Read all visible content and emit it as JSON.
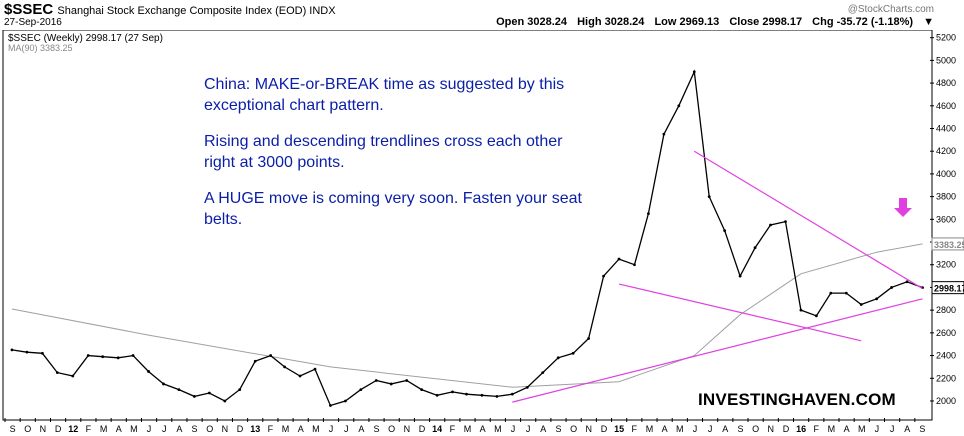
{
  "header": {
    "symbol": "$SSEC",
    "description": "Shanghai Stock Exchange Composite Index (EOD)  INDX",
    "date": "27-Sep-2016",
    "brand": "@StockCharts.com",
    "open": "Open 3028.24",
    "high": "High 3028.24",
    "low": "Low 2969.13",
    "close": "Close 2998.17",
    "chg": "Chg -35.72 (-1.18%)",
    "chg_arrow": "▼"
  },
  "legend": {
    "price": "$SSEC (Weekly) 2998.17 (27 Sep)",
    "ma": "MA(90) 3383.25"
  },
  "annotation": {
    "line1": "China: MAKE-or-BREAK time as suggested by this exceptional chart pattern.",
    "line2": "Rising and descending trendlines cross each other right at 3000 points.",
    "line3": "A HUGE move is coming very soon. Fasten your seat belts."
  },
  "watermark": "INVESTINGHAVEN.COM",
  "colors": {
    "price": "#000000",
    "ma": "#a0a0a0",
    "trendline": "#e040e0",
    "text": "#0a1ea8",
    "arrow": "#e040e0"
  },
  "chart_data": {
    "type": "line",
    "title": "$SSEC (Weekly)",
    "ylim": [
      1850,
      5250
    ],
    "y_ticks": [
      2000,
      2200,
      2400,
      2600,
      2800,
      3000,
      3200,
      3400,
      3600,
      3800,
      4000,
      4200,
      4400,
      4600,
      4800,
      5000,
      5200
    ],
    "x_labels": [
      "S",
      "O",
      "N",
      "D",
      "12",
      "F",
      "M",
      "A",
      "M",
      "J",
      "J",
      "A",
      "S",
      "O",
      "N",
      "D",
      "13",
      "F",
      "M",
      "A",
      "M",
      "J",
      "J",
      "A",
      "S",
      "O",
      "N",
      "D",
      "14",
      "F",
      "M",
      "A",
      "M",
      "J",
      "J",
      "A",
      "S",
      "O",
      "N",
      "D",
      "15",
      "F",
      "M",
      "A",
      "M",
      "J",
      "J",
      "A",
      "S",
      "O",
      "N",
      "D",
      "16",
      "F",
      "M",
      "A",
      "M",
      "J",
      "J",
      "A",
      "S"
    ],
    "last_labels": [
      "3383.25",
      "2998.17"
    ],
    "series": [
      {
        "name": "$SSEC (Weekly)",
        "dates": [
          "2011-09",
          "2011-10",
          "2011-11",
          "2011-12",
          "2012-01",
          "2012-02",
          "2012-03",
          "2012-04",
          "2012-05",
          "2012-06",
          "2012-07",
          "2012-08",
          "2012-09",
          "2012-10",
          "2012-11",
          "2012-12",
          "2013-01",
          "2013-02",
          "2013-03",
          "2013-04",
          "2013-05",
          "2013-06",
          "2013-07",
          "2013-08",
          "2013-09",
          "2013-10",
          "2013-11",
          "2013-12",
          "2014-01",
          "2014-02",
          "2014-03",
          "2014-04",
          "2014-05",
          "2014-06",
          "2014-07",
          "2014-08",
          "2014-09",
          "2014-10",
          "2014-11",
          "2014-12",
          "2015-01",
          "2015-02",
          "2015-03",
          "2015-04",
          "2015-05",
          "2015-06",
          "2015-07",
          "2015-08",
          "2015-09",
          "2015-10",
          "2015-11",
          "2015-12",
          "2016-01",
          "2016-02",
          "2016-03",
          "2016-04",
          "2016-05",
          "2016-06",
          "2016-07",
          "2016-08",
          "2016-09"
        ],
        "values": [
          2450,
          2430,
          2420,
          2250,
          2220,
          2400,
          2390,
          2380,
          2400,
          2260,
          2150,
          2100,
          2040,
          2070,
          2000,
          2100,
          2350,
          2400,
          2300,
          2220,
          2280,
          1960,
          2000,
          2100,
          2180,
          2150,
          2180,
          2100,
          2050,
          2080,
          2060,
          2050,
          2040,
          2060,
          2120,
          2250,
          2380,
          2420,
          2550,
          3100,
          3250,
          3200,
          3650,
          4350,
          4600,
          4900,
          3800,
          3500,
          3100,
          3350,
          3550,
          3580,
          2800,
          2750,
          2950,
          2950,
          2850,
          2900,
          3000,
          3050,
          2998.17
        ]
      },
      {
        "name": "MA(90)",
        "dates": [
          "2011-09",
          "2012-06",
          "2013-06",
          "2014-06",
          "2015-01",
          "2015-06",
          "2015-09",
          "2016-01",
          "2016-06",
          "2016-09"
        ],
        "values": [
          2810,
          2580,
          2300,
          2120,
          2170,
          2400,
          2760,
          3120,
          3310,
          3383.25
        ]
      }
    ],
    "trendlines": [
      {
        "name": "rising",
        "points": [
          [
            "2014-06",
            1990
          ],
          [
            "2016-09",
            2900
          ]
        ]
      },
      {
        "name": "descending-upper",
        "points": [
          [
            "2015-06",
            4200
          ],
          [
            "2016-09",
            2990
          ]
        ]
      },
      {
        "name": "descending-lower",
        "points": [
          [
            "2015-01",
            3030
          ],
          [
            "2016-05",
            2530
          ]
        ]
      }
    ],
    "grid": false
  }
}
